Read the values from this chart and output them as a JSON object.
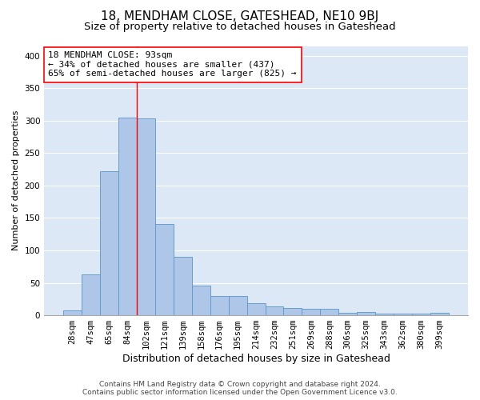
{
  "title": "18, MENDHAM CLOSE, GATESHEAD, NE10 9BJ",
  "subtitle": "Size of property relative to detached houses in Gateshead",
  "xlabel": "Distribution of detached houses by size in Gateshead",
  "ylabel": "Number of detached properties",
  "categories": [
    "28sqm",
    "47sqm",
    "65sqm",
    "84sqm",
    "102sqm",
    "121sqm",
    "139sqm",
    "158sqm",
    "176sqm",
    "195sqm",
    "214sqm",
    "232sqm",
    "251sqm",
    "269sqm",
    "288sqm",
    "306sqm",
    "325sqm",
    "343sqm",
    "362sqm",
    "380sqm",
    "399sqm"
  ],
  "values": [
    8,
    63,
    222,
    305,
    303,
    141,
    90,
    46,
    30,
    30,
    19,
    14,
    11,
    10,
    10,
    4,
    5,
    3,
    2,
    2,
    4
  ],
  "bar_color": "#aec6e8",
  "bar_edge_color": "#5a96c8",
  "vline_bin_index": 3.5,
  "annotation_line1": "18 MENDHAM CLOSE: 93sqm",
  "annotation_line2": "← 34% of detached houses are smaller (437)",
  "annotation_line3": "65% of semi-detached houses are larger (825) →",
  "annotation_box_color": "white",
  "annotation_box_edge_color": "red",
  "ylim": [
    0,
    415
  ],
  "yticks": [
    0,
    50,
    100,
    150,
    200,
    250,
    300,
    350,
    400
  ],
  "background_color": "#dce8f5",
  "grid_color": "white",
  "footer_line1": "Contains HM Land Registry data © Crown copyright and database right 2024.",
  "footer_line2": "Contains public sector information licensed under the Open Government Licence v3.0.",
  "title_fontsize": 11,
  "subtitle_fontsize": 9.5,
  "xlabel_fontsize": 9,
  "ylabel_fontsize": 8,
  "tick_fontsize": 7.5,
  "annotation_fontsize": 8,
  "footer_fontsize": 6.5
}
